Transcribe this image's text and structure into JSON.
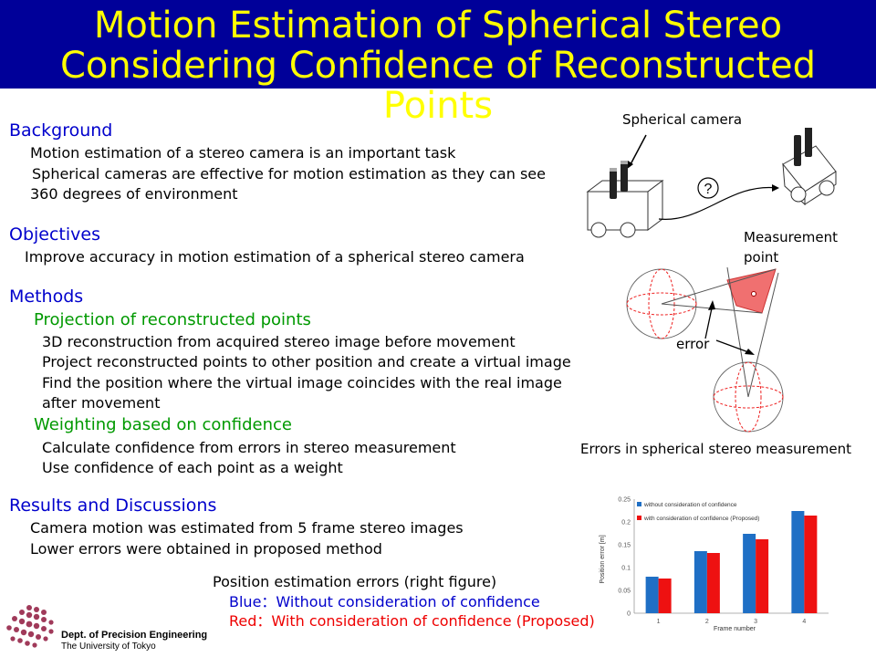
{
  "title": {
    "line1": "Motion Estimation of Spherical Stereo",
    "line2": "Considering Confidence of Reconstructed Points"
  },
  "background": {
    "heading": "Background",
    "lines": [
      "Motion estimation of a stereo camera is an important task",
      "Spherical cameras are effective for motion estimation as they can see",
      "360 degrees of environment"
    ]
  },
  "objectives": {
    "heading": "Objectives",
    "lines": [
      "Improve accuracy in motion estimation of a spherical stereo camera"
    ]
  },
  "methods": {
    "heading": "Methods",
    "projection": {
      "heading": "Projection of reconstructed points",
      "lines": [
        "3D reconstruction from acquired stereo image before movement",
        "Project reconstructed points to other position and create a virtual image",
        "Find the position where the virtual image coincides with the real image",
        "after movement"
      ]
    },
    "weighting": {
      "heading": "Weighting based on confidence",
      "lines": [
        "Calculate confidence from errors in stereo measurement",
        "Use confidence of each point as a weight"
      ]
    }
  },
  "results": {
    "heading": "Results and Discussions",
    "lines": [
      "Camera motion was estimated from 5 frame stereo images",
      "Lower errors were obtained in proposed method"
    ]
  },
  "caption": {
    "line1": "Position estimation errors (right figure)",
    "blue": "Blue：Without consideration of confidence",
    "red": "Red：With consideration of confidence (Proposed)"
  },
  "diagram": {
    "camera_label": "Spherical camera",
    "question_mark": "?",
    "measurement_label_1": "Measurement",
    "measurement_label_2": "point",
    "error_label": "error",
    "stereo_caption": "Errors in spherical stereo measurement"
  },
  "logo": {
    "line1": "Dept. of Precision Engineering",
    "line2": "The University of Tokyo"
  },
  "chart_data": {
    "type": "bar",
    "categories": [
      "1",
      "2",
      "3",
      "4"
    ],
    "series": [
      {
        "name": "without consideration of confidence",
        "color": "#1f6fc5",
        "values": [
          0.08,
          0.136,
          0.174,
          0.224
        ]
      },
      {
        "name": "with consideration of confidence (Proposed)",
        "color": "#ee1111",
        "values": [
          0.076,
          0.132,
          0.162,
          0.214
        ]
      }
    ],
    "xlabel": "Frame number",
    "ylabel": "Position error [m]",
    "ylim": [
      0,
      0.25
    ],
    "yticks": [
      "0",
      "0.05",
      "0.1",
      "0.15",
      "0.2",
      "0.25"
    ],
    "legend": "top-left",
    "grid": false
  }
}
